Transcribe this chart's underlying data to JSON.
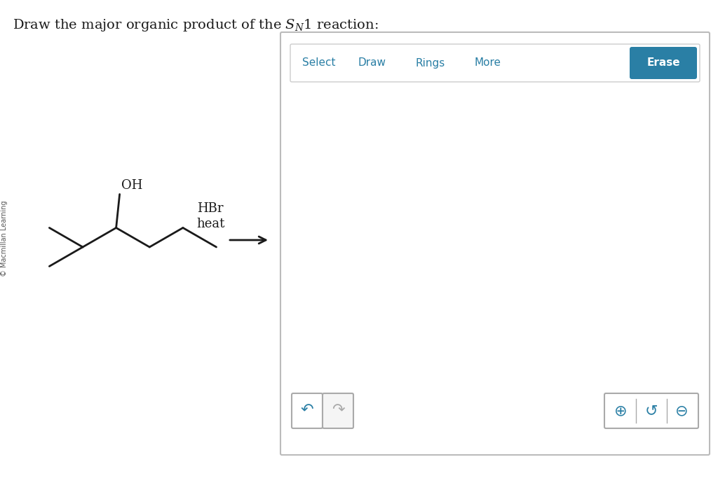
{
  "bg_color": "#ffffff",
  "title_fontsize": 14,
  "watermark_text": "© Macmillan Learning",
  "reagent_text1": "HBr",
  "reagent_text2": "heat",
  "toolbar_items": [
    "Select",
    "Draw",
    "Rings",
    "More"
  ],
  "toolbar_item_color": "#2a7fa5",
  "erase_button_color": "#2a7fa5",
  "erase_button_text": "Erase",
  "molecule_color": "#1a1a1a",
  "lw": 2.0
}
